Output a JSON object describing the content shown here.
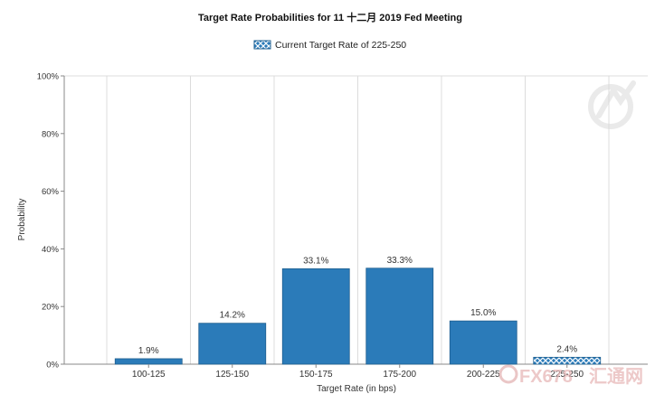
{
  "chart_data": {
    "type": "bar",
    "title": "Target Rate Probabilities for 11 十二月 2019 Fed Meeting",
    "legend": {
      "label": "Current Target Rate of 225-250",
      "placement": "top-center"
    },
    "xlabel": "Target Rate (in bps)",
    "ylabel": "Probability",
    "categories": [
      "100-125",
      "125-150",
      "150-175",
      "175-200",
      "200-225",
      "225-250"
    ],
    "values": [
      1.9,
      14.2,
      33.1,
      33.3,
      15.0,
      2.4
    ],
    "data_labels": [
      "1.9%",
      "14.2%",
      "33.1%",
      "33.3%",
      "15.0%",
      "2.4%"
    ],
    "current_category": "225-250",
    "ylim": [
      0,
      100
    ],
    "yticks": [
      0,
      20,
      40,
      60,
      80,
      100
    ],
    "ytick_labels": [
      "0%",
      "20%",
      "40%",
      "60%",
      "80%",
      "100%"
    ],
    "grid": "vertical",
    "colors": {
      "bar": "#2b7bb9",
      "bar_edge": "#1f5f8f",
      "grid": "#dcdcdc",
      "axis": "#888888"
    }
  },
  "watermark": {
    "text": "FX678",
    "subtext": "汇通网",
    "color": "#e8c4c4"
  }
}
